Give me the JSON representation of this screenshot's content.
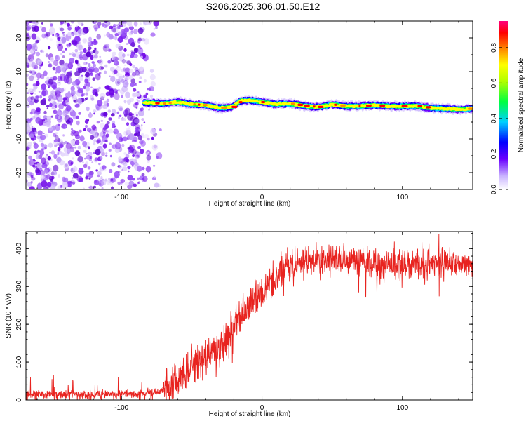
{
  "figure": {
    "title": "S206.2025.306.01.50.E12"
  },
  "chart_data": [
    {
      "type": "heatmap",
      "name": "spectrogram",
      "xlabel": "Height of straight line (km)",
      "ylabel": "Frequency (Hz)",
      "xlim": [
        -168,
        150
      ],
      "ylim": [
        -25,
        25
      ],
      "xticks": [
        -100,
        0,
        100
      ],
      "yticks": [
        -20,
        -10,
        0,
        10,
        20
      ],
      "colorbar": {
        "label": "Normalized spectral amplitude",
        "range": [
          0.0,
          0.95
        ],
        "ticks": [
          0.0,
          0.2,
          0.4,
          0.6,
          0.8
        ],
        "tick_labels": [
          "0.0",
          "0.2",
          "0.4",
          "0.6",
          "0.8"
        ]
      },
      "noise_region_km": [
        -168,
        -72
      ],
      "ridge_points": [
        {
          "x": -84,
          "freq": 0.8
        },
        {
          "x": -70,
          "freq": 0.5
        },
        {
          "x": -60,
          "freq": 1.0
        },
        {
          "x": -50,
          "freq": 0.3
        },
        {
          "x": -40,
          "freq": 0.0
        },
        {
          "x": -30,
          "freq": -0.8
        },
        {
          "x": -22,
          "freq": -0.6
        },
        {
          "x": -15,
          "freq": 1.3
        },
        {
          "x": -8,
          "freq": 1.5
        },
        {
          "x": 0,
          "freq": 0.9
        },
        {
          "x": 10,
          "freq": 0.3
        },
        {
          "x": 20,
          "freq": 0.5
        },
        {
          "x": 30,
          "freq": -0.2
        },
        {
          "x": 40,
          "freq": -0.5
        },
        {
          "x": 50,
          "freq": 0.2
        },
        {
          "x": 60,
          "freq": -0.3
        },
        {
          "x": 70,
          "freq": -0.2
        },
        {
          "x": 80,
          "freq": 0.0
        },
        {
          "x": 90,
          "freq": -0.3
        },
        {
          "x": 100,
          "freq": -0.3
        },
        {
          "x": 110,
          "freq": -0.2
        },
        {
          "x": 120,
          "freq": -0.8
        },
        {
          "x": 130,
          "freq": -1.0
        },
        {
          "x": 140,
          "freq": -1.2
        },
        {
          "x": 150,
          "freq": -1.0
        }
      ]
    },
    {
      "type": "line",
      "name": "snr",
      "xlabel": "Height of straight line (km)",
      "ylabel": "SNR (10 * v/v)",
      "xlim": [
        -168,
        150
      ],
      "ylim": [
        0,
        445
      ],
      "xticks": [
        -100,
        0,
        100
      ],
      "yticks": [
        0,
        100,
        200,
        300,
        400
      ],
      "color": "#e8231f",
      "series": [
        {
          "name": "SNR",
          "x": [
            -168,
            -150,
            -130,
            -110,
            -90,
            -75,
            -65,
            -60,
            -55,
            -50,
            -45,
            -40,
            -35,
            -30,
            -25,
            -20,
            -15,
            -10,
            -5,
            0,
            5,
            10,
            15,
            20,
            25,
            30,
            40,
            50,
            60,
            70,
            80,
            90,
            100,
            110,
            120,
            130,
            140,
            150
          ],
          "y": [
            15,
            15,
            14,
            15,
            16,
            22,
            30,
            60,
            80,
            90,
            105,
            115,
            120,
            140,
            165,
            195,
            215,
            240,
            265,
            280,
            305,
            330,
            345,
            355,
            362,
            368,
            368,
            370,
            368,
            362,
            360,
            360,
            360,
            360,
            355,
            360,
            360,
            358
          ]
        }
      ]
    }
  ]
}
